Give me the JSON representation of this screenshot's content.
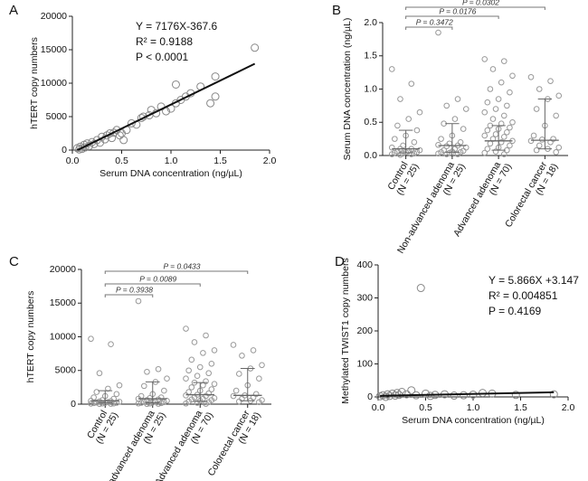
{
  "chart_data": [
    {
      "type": "scatter",
      "panel_label": "A",
      "x_label": "Serum DNA concentration (ng/µL)",
      "y_label": "hTERT copy numbers",
      "xlim": [
        0,
        2
      ],
      "xticks": [
        {
          "value": 0,
          "label": "0.0"
        },
        {
          "value": 0.5,
          "label": "0.5"
        },
        {
          "value": 1,
          "label": "1.0"
        },
        {
          "value": 1.5,
          "label": "1.5"
        },
        {
          "value": 2,
          "label": "2.0"
        }
      ],
      "ylim": [
        0,
        20000
      ],
      "yticks": [
        0,
        5000,
        10000,
        15000,
        20000
      ],
      "x": [
        0.05,
        0.07,
        0.08,
        0.1,
        0.12,
        0.13,
        0.15,
        0.17,
        0.2,
        0.22,
        0.25,
        0.28,
        0.3,
        0.33,
        0.35,
        0.38,
        0.4,
        0.42,
        0.45,
        0.48,
        0.5,
        0.52,
        0.55,
        0.6,
        0.65,
        0.7,
        0.72,
        0.78,
        0.8,
        0.85,
        0.9,
        0.95,
        1.0,
        1.05,
        1.05,
        1.1,
        1.15,
        1.2,
        1.3,
        1.4,
        1.45,
        1.45,
        1.85
      ],
      "values": [
        300,
        100,
        500,
        200,
        800,
        400,
        1000,
        600,
        1200,
        900,
        1500,
        1100,
        2000,
        1600,
        2200,
        2500,
        1800,
        2600,
        3000,
        2200,
        2500,
        1500,
        3000,
        4000,
        3800,
        4800,
        5000,
        5200,
        6000,
        5500,
        6500,
        5800,
        6200,
        9800,
        7000,
        7500,
        8000,
        8500,
        9500,
        7000,
        8000,
        11000,
        15300
      ],
      "fit": {
        "slope": 7176,
        "intercept": -367.6,
        "equation": "Y = 7176X-367.6",
        "r2": "R² = 0.9188",
        "p": "P < 0.0001"
      }
    },
    {
      "type": "strip",
      "panel_label": "B",
      "y_label": "Serum DNA concentration (ng/µL)",
      "ylim": [
        0,
        2
      ],
      "yticks": [
        {
          "value": 0,
          "label": "0.0"
        },
        {
          "value": 0.5,
          "label": "0.5"
        },
        {
          "value": 1,
          "label": "1.0"
        },
        {
          "value": 1.5,
          "label": "1.5"
        },
        {
          "value": 2,
          "label": "2.0"
        }
      ],
      "categories": [
        [
          "Control",
          "(N = 25)"
        ],
        [
          "Non-advanced adenoma",
          "(N = 25)"
        ],
        [
          "Advanced adenoma",
          "(N = 70)"
        ],
        [
          "Colorectal cancer",
          "(N = 18)"
        ]
      ],
      "p_labels": [
        null,
        "P = 0.3472",
        "P = 0.0176",
        "P = 0.0302"
      ],
      "groups": [
        {
          "median": 0.1,
          "q1": 0.04,
          "q3": 0.38,
          "values": [
            1.3,
            1.08,
            0.85,
            0.65,
            0.55,
            0.45,
            0.38,
            0.3,
            0.25,
            0.2,
            0.15,
            0.12,
            0.1,
            0.1,
            0.08,
            0.07,
            0.06,
            0.05,
            0.05,
            0.04,
            0.03,
            0.03,
            0.02,
            0.02,
            0.01
          ]
        },
        {
          "median": 0.15,
          "q1": 0.05,
          "q3": 0.48,
          "values": [
            1.85,
            0.85,
            0.75,
            0.7,
            0.55,
            0.48,
            0.4,
            0.3,
            0.25,
            0.2,
            0.18,
            0.16,
            0.15,
            0.14,
            0.12,
            0.1,
            0.08,
            0.07,
            0.06,
            0.05,
            0.05,
            0.04,
            0.03,
            0.02,
            0.02
          ]
        },
        {
          "median": 0.22,
          "q1": 0.08,
          "q3": 0.45,
          "values": [
            1.45,
            1.42,
            1.3,
            1.2,
            1.1,
            1.0,
            0.95,
            0.85,
            0.8,
            0.75,
            0.7,
            0.65,
            0.6,
            0.55,
            0.5,
            0.48,
            0.45,
            0.42,
            0.4,
            0.38,
            0.35,
            0.32,
            0.3,
            0.28,
            0.25,
            0.22,
            0.2,
            0.18,
            0.15,
            0.12,
            0.1,
            0.08,
            0.06,
            0.04,
            0.02
          ]
        },
        {
          "median": 0.23,
          "q1": 0.1,
          "q3": 0.85,
          "values": [
            1.18,
            1.12,
            1.0,
            0.9,
            0.85,
            0.7,
            0.6,
            0.45,
            0.3,
            0.25,
            0.24,
            0.22,
            0.2,
            0.15,
            0.12,
            0.1,
            0.08,
            0.05
          ]
        }
      ]
    },
    {
      "type": "strip",
      "panel_label": "C",
      "y_label": "hTERT copy numbers",
      "ylim": [
        0,
        20000
      ],
      "yticks": [
        0,
        5000,
        10000,
        15000,
        20000
      ],
      "categories": [
        [
          "Control",
          "(N = 25)"
        ],
        [
          "Non-advanced adenoma",
          "(N = 25)"
        ],
        [
          "Advanced adenoma",
          "(N = 70)"
        ],
        [
          "Colorectal cancer",
          "(N = 18)"
        ]
      ],
      "p_labels": [
        null,
        "P = 0.3938",
        "P = 0.0089",
        "P = 0.0433"
      ],
      "groups": [
        {
          "median": 500,
          "q1": 200,
          "q3": 2000,
          "values": [
            9700,
            8900,
            4600,
            2800,
            2300,
            1800,
            1500,
            1200,
            1000,
            800,
            600,
            500,
            450,
            400,
            350,
            300,
            250,
            200,
            200,
            150,
            100,
            100,
            80,
            50,
            30
          ]
        },
        {
          "median": 800,
          "q1": 200,
          "q3": 3300,
          "values": [
            15300,
            5200,
            4800,
            3800,
            3300,
            2700,
            2000,
            1500,
            1200,
            1000,
            900,
            800,
            700,
            600,
            500,
            400,
            350,
            300,
            250,
            200,
            150,
            100,
            100,
            50,
            30
          ]
        },
        {
          "median": 1400,
          "q1": 400,
          "q3": 3200,
          "values": [
            11200,
            10200,
            9200,
            8000,
            7600,
            6600,
            6000,
            5500,
            5000,
            4600,
            4200,
            3800,
            3400,
            3200,
            3000,
            2800,
            2500,
            2200,
            2000,
            1800,
            1600,
            1400,
            1300,
            1200,
            1000,
            900,
            800,
            700,
            600,
            500,
            400,
            300,
            200,
            100,
            50
          ]
        },
        {
          "median": 1300,
          "q1": 500,
          "q3": 5300,
          "values": [
            8800,
            8000,
            7200,
            5800,
            5300,
            4500,
            3800,
            2800,
            2000,
            1500,
            1300,
            1200,
            1000,
            800,
            600,
            500,
            400,
            300
          ]
        }
      ]
    },
    {
      "type": "scatter",
      "panel_label": "D",
      "x_label": "Serum DNA concentration (ng/µL)",
      "y_label": "Methylated TWIST1 copy numbers",
      "xlim": [
        0,
        2
      ],
      "xticks": [
        {
          "value": 0,
          "label": "0.0"
        },
        {
          "value": 0.5,
          "label": "0.5"
        },
        {
          "value": 1,
          "label": "1.0"
        },
        {
          "value": 1.5,
          "label": "1.5"
        },
        {
          "value": 2,
          "label": "2.0"
        }
      ],
      "ylim": [
        0,
        400
      ],
      "yticks": [
        0,
        100,
        200,
        300,
        400
      ],
      "x": [
        0.02,
        0.05,
        0.08,
        0.1,
        0.12,
        0.15,
        0.18,
        0.2,
        0.22,
        0.25,
        0.3,
        0.35,
        0.4,
        0.45,
        0.5,
        0.55,
        0.6,
        0.7,
        0.8,
        0.9,
        1.0,
        1.1,
        1.2,
        1.45,
        1.85
      ],
      "values": [
        2,
        5,
        0,
        8,
        3,
        10,
        4,
        12,
        6,
        15,
        8,
        20,
        5,
        330,
        10,
        3,
        6,
        8,
        4,
        5,
        7,
        12,
        10,
        6,
        8
      ],
      "fit": {
        "slope": 5.866,
        "intercept": 3.147,
        "equation": "Y = 5.866X +3.147",
        "r2": "R² = 0.004851",
        "p": "P = 0.4169"
      }
    }
  ]
}
